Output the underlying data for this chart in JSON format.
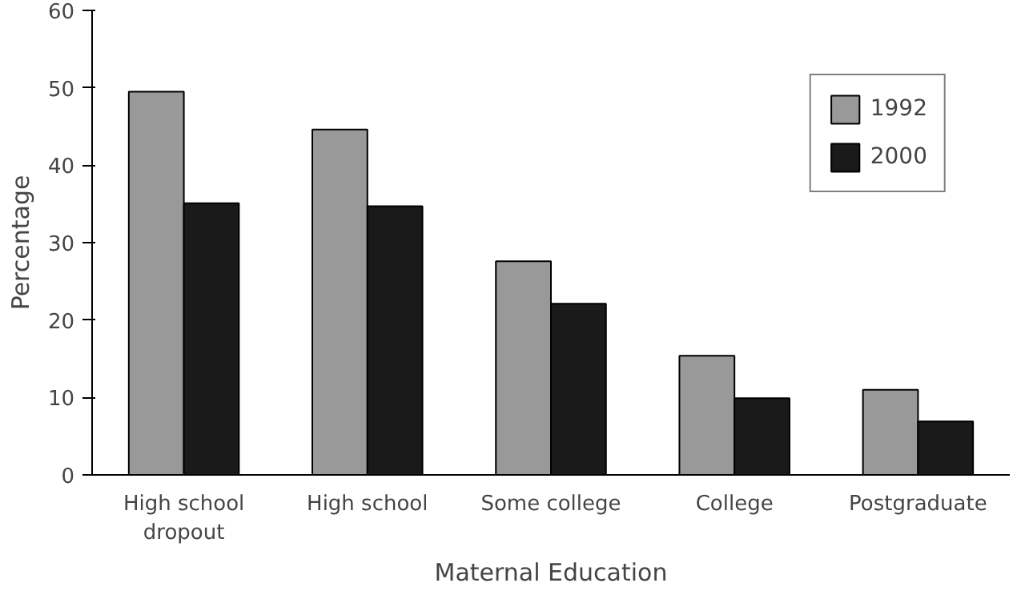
{
  "chart_data": {
    "type": "bar",
    "xlabel": "Maternal Education",
    "ylabel": "Percentage",
    "categories": [
      "High school\ndropout",
      "High school",
      "Some college",
      "College",
      "Postgraduate"
    ],
    "series": [
      {
        "name": "1992",
        "color": "#999999",
        "values": [
          49.5,
          44.6,
          27.6,
          15.4,
          11.0
        ]
      },
      {
        "name": "2000",
        "color": "#1a1a1a",
        "values": [
          35.1,
          34.7,
          22.1,
          9.9,
          6.9
        ]
      }
    ],
    "ylim": [
      0,
      60
    ],
    "yticks": [
      0,
      10,
      20,
      30,
      40,
      50,
      60
    ],
    "grid": false,
    "legend": "top right"
  }
}
